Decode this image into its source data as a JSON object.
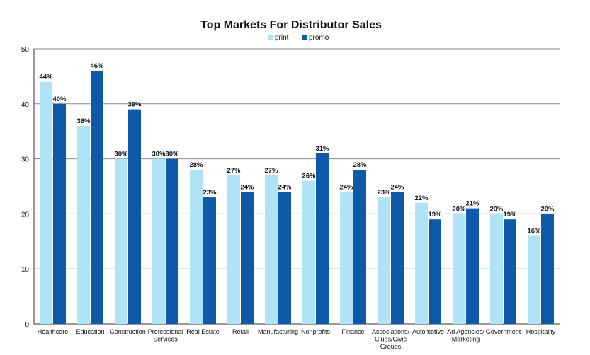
{
  "chart_data": {
    "type": "bar",
    "title": "Top Markets For Distributor Sales",
    "categories": [
      [
        "Healthcare"
      ],
      [
        "Education"
      ],
      [
        "Construction"
      ],
      [
        "Professional",
        "Services"
      ],
      [
        "Real Estate"
      ],
      [
        "Retail"
      ],
      [
        "Manufacturing"
      ],
      [
        "Nonprofits"
      ],
      [
        "Finance"
      ],
      [
        "Associations/",
        "Clubs/Civic",
        "Groups"
      ],
      [
        "Automotive"
      ],
      [
        "Ad Agencies/",
        "Marketing"
      ],
      [
        "Government"
      ],
      [
        "Hospitality"
      ]
    ],
    "series": [
      {
        "name": "print",
        "color": "#aee3f8",
        "values": [
          44,
          36,
          30,
          30,
          28,
          27,
          27,
          26,
          24,
          23,
          22,
          20,
          20,
          16
        ]
      },
      {
        "name": "promo",
        "color": "#0f5aa8",
        "values": [
          40,
          46,
          39,
          30,
          23,
          24,
          24,
          31,
          28,
          24,
          19,
          21,
          19,
          20
        ]
      }
    ],
    "value_suffix": "%",
    "ylim": [
      0,
      50
    ],
    "yticks": [
      0,
      10,
      20,
      30,
      40,
      50
    ],
    "grid": true,
    "legend": "top-center",
    "xlabel": "",
    "ylabel": ""
  }
}
